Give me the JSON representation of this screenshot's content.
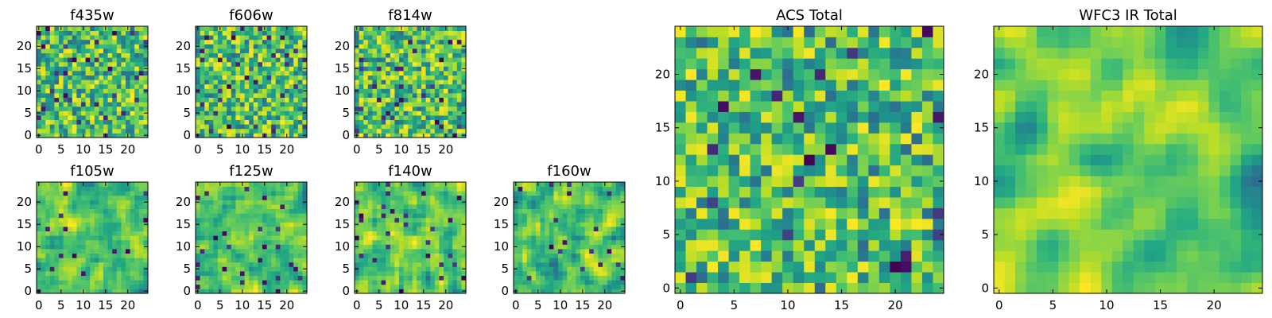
{
  "chart_data": [
    {
      "type": "heatmap",
      "title": "f435w",
      "grid": [
        25,
        25
      ],
      "xticks": [
        "0",
        "5",
        "10",
        "15",
        "20"
      ],
      "yticks": [
        "0",
        "5",
        "10",
        "15",
        "20"
      ],
      "xlim": [
        -0.5,
        24.5
      ],
      "ylim": [
        -0.5,
        24.5
      ],
      "colormap": "viridis",
      "seed": 11,
      "smooth": 0,
      "dark": 0.05
    },
    {
      "type": "heatmap",
      "title": "f606w",
      "grid": [
        25,
        25
      ],
      "xticks": [
        "0",
        "5",
        "10",
        "15",
        "20"
      ],
      "yticks": [
        "0",
        "5",
        "10",
        "15",
        "20"
      ],
      "xlim": [
        -0.5,
        24.5
      ],
      "ylim": [
        -0.5,
        24.5
      ],
      "colormap": "viridis",
      "seed": 23,
      "smooth": 0,
      "dark": 0.05
    },
    {
      "type": "heatmap",
      "title": "f814w",
      "grid": [
        25,
        25
      ],
      "xticks": [
        "0",
        "5",
        "10",
        "15",
        "20"
      ],
      "yticks": [
        "0",
        "5",
        "10",
        "15",
        "20"
      ],
      "xlim": [
        -0.5,
        24.5
      ],
      "ylim": [
        -0.5,
        24.5
      ],
      "colormap": "viridis",
      "seed": 37,
      "smooth": 0,
      "dark": 0.04
    },
    {
      "type": "heatmap",
      "title": "f105w",
      "grid": [
        25,
        25
      ],
      "xticks": [
        "0",
        "5",
        "10",
        "15",
        "20"
      ],
      "yticks": [
        "0",
        "5",
        "10",
        "15",
        "20"
      ],
      "xlim": [
        -0.5,
        24.5
      ],
      "ylim": [
        -0.5,
        24.5
      ],
      "colormap": "viridis",
      "seed": 41,
      "smooth": 1,
      "dark": 0.03
    },
    {
      "type": "heatmap",
      "title": "f125w",
      "grid": [
        25,
        25
      ],
      "xticks": [
        "0",
        "5",
        "10",
        "15",
        "20"
      ],
      "yticks": [
        "0",
        "5",
        "10",
        "15",
        "20"
      ],
      "xlim": [
        -0.5,
        24.5
      ],
      "ylim": [
        -0.5,
        24.5
      ],
      "colormap": "viridis",
      "seed": 53,
      "smooth": 1,
      "dark": 0.03
    },
    {
      "type": "heatmap",
      "title": "f140w",
      "grid": [
        25,
        25
      ],
      "xticks": [
        "0",
        "5",
        "10",
        "15",
        "20"
      ],
      "yticks": [
        "0",
        "5",
        "10",
        "15",
        "20"
      ],
      "xlim": [
        -0.5,
        24.5
      ],
      "ylim": [
        -0.5,
        24.5
      ],
      "colormap": "viridis",
      "seed": 67,
      "smooth": 1,
      "dark": 0.04
    },
    {
      "type": "heatmap",
      "title": "f160w",
      "grid": [
        25,
        25
      ],
      "xticks": [
        "0",
        "5",
        "10",
        "15",
        "20"
      ],
      "yticks": [
        "0",
        "5",
        "10",
        "15",
        "20"
      ],
      "xlim": [
        -0.5,
        24.5
      ],
      "ylim": [
        -0.5,
        24.5
      ],
      "colormap": "viridis",
      "seed": 79,
      "smooth": 1,
      "dark": 0.02
    },
    {
      "type": "heatmap",
      "title": "ACS Total",
      "grid": [
        25,
        25
      ],
      "xticks": [
        "0",
        "5",
        "10",
        "15",
        "20"
      ],
      "yticks": [
        "0",
        "5",
        "10",
        "15",
        "20"
      ],
      "xlim": [
        -0.5,
        24.5
      ],
      "ylim": [
        -0.5,
        24.5
      ],
      "colormap": "viridis",
      "seed": 97,
      "smooth": 0,
      "dark": 0.03
    },
    {
      "type": "heatmap",
      "title": "WFC3 IR Total",
      "grid": [
        25,
        25
      ],
      "xticks": [
        "0",
        "5",
        "10",
        "15",
        "20"
      ],
      "yticks": [
        "0",
        "5",
        "10",
        "15",
        "20"
      ],
      "xlim": [
        -0.5,
        24.5
      ],
      "ylim": [
        -0.5,
        24.5
      ],
      "colormap": "viridis",
      "seed": 113,
      "smooth": 2,
      "dark": 0.0
    }
  ]
}
